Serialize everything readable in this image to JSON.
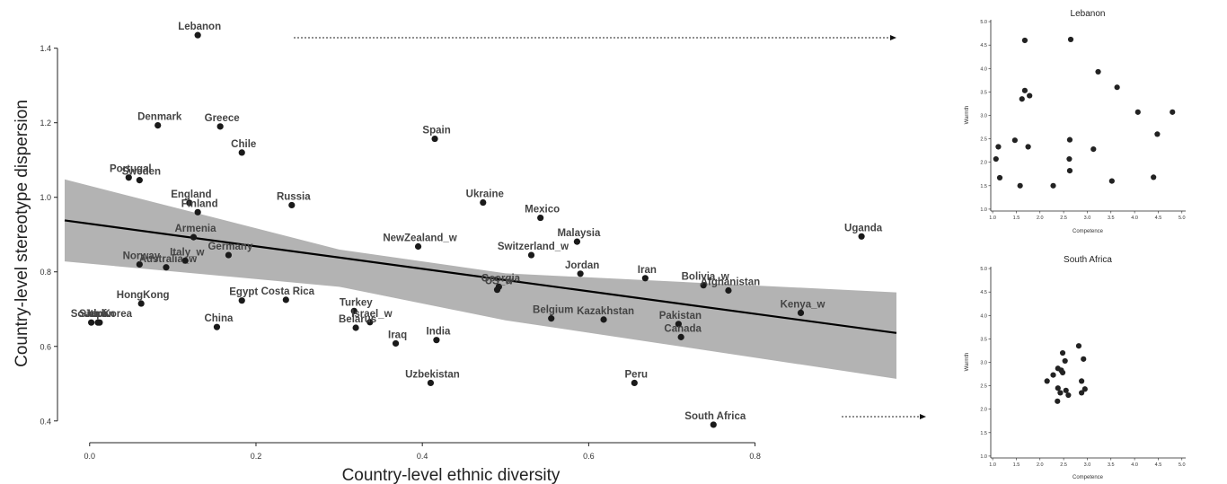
{
  "chart_data": [
    {
      "type": "scatter",
      "title": "",
      "xlabel": "Country-level ethnic diversity",
      "ylabel": "Country-level stereotype dispersion",
      "xlim": [
        -0.03,
        0.97
      ],
      "ylim": [
        0.385,
        1.445
      ],
      "xticks": [
        0.0,
        0.2,
        0.4,
        0.6,
        0.8
      ],
      "yticks": [
        0.4,
        0.6,
        0.8,
        1.0,
        1.2,
        1.4
      ],
      "xtick_labels": [
        "0.0",
        "0.2",
        "0.4",
        "0.6",
        "0.8"
      ],
      "ytick_labels": [
        "0.4",
        "0.6",
        "0.8",
        "1.0",
        "1.2",
        "1.4"
      ],
      "grid": false,
      "point_color": "#1a1a1a",
      "band_color": "#b3b3b3",
      "line_color": "#000000",
      "regression_line": {
        "x": [
          -0.03,
          0.97
        ],
        "y": [
          0.938,
          0.636
        ]
      },
      "confidence_band": {
        "x": [
          -0.03,
          0.3,
          0.5,
          0.97
        ],
        "upper": [
          1.048,
          0.86,
          0.796,
          0.745
        ],
        "lower": [
          0.828,
          0.76,
          0.67,
          0.513
        ]
      },
      "points": [
        {
          "label": "Lebanon",
          "x": 0.13,
          "y": 1.435
        },
        {
          "label": "Denmark",
          "x": 0.082,
          "y": 1.193
        },
        {
          "label": "Greece",
          "x": 0.157,
          "y": 1.19
        },
        {
          "label": "Chile",
          "x": 0.183,
          "y": 1.12
        },
        {
          "label": "Spain",
          "x": 0.415,
          "y": 1.157
        },
        {
          "label": "Portugal",
          "x": 0.047,
          "y": 1.053
        },
        {
          "label": "Sweden",
          "x": 0.06,
          "y": 1.046
        },
        {
          "label": "England",
          "x": 0.12,
          "y": 0.985
        },
        {
          "label": "Finland",
          "x": 0.13,
          "y": 0.96
        },
        {
          "label": "Russia",
          "x": 0.243,
          "y": 0.979
        },
        {
          "label": "Ukraine",
          "x": 0.473,
          "y": 0.986
        },
        {
          "label": "Mexico",
          "x": 0.542,
          "y": 0.945
        },
        {
          "label": "Uganda",
          "x": 0.928,
          "y": 0.895
        },
        {
          "label": "Armenia",
          "x": 0.125,
          "y": 0.893
        },
        {
          "label": "NewZealand_w",
          "x": 0.395,
          "y": 0.868
        },
        {
          "label": "Malaysia",
          "x": 0.586,
          "y": 0.881
        },
        {
          "label": "Switzerland_w",
          "x": 0.531,
          "y": 0.845
        },
        {
          "label": "Germany",
          "x": 0.167,
          "y": 0.845
        },
        {
          "label": "Italy_w",
          "x": 0.115,
          "y": 0.83
        },
        {
          "label": "Norway",
          "x": 0.06,
          "y": 0.82
        },
        {
          "label": "Australia_w",
          "x": 0.092,
          "y": 0.812
        },
        {
          "label": "Jordan",
          "x": 0.59,
          "y": 0.795
        },
        {
          "label": "Iran",
          "x": 0.668,
          "y": 0.783
        },
        {
          "label": "Bolivia_w",
          "x": 0.738,
          "y": 0.764
        },
        {
          "label": "Afghanistan",
          "x": 0.768,
          "y": 0.75
        },
        {
          "label": "Georgia",
          "x": 0.492,
          "y": 0.76
        },
        {
          "label": "US_w",
          "x": 0.49,
          "y": 0.752
        },
        {
          "label": "HongKong",
          "x": 0.062,
          "y": 0.715
        },
        {
          "label": "Egypt",
          "x": 0.183,
          "y": 0.723
        },
        {
          "label": "Costa Rica",
          "x": 0.236,
          "y": 0.725
        },
        {
          "label": "Turkey",
          "x": 0.318,
          "y": 0.695
        },
        {
          "label": "Israel_w",
          "x": 0.337,
          "y": 0.665
        },
        {
          "label": "Belarus",
          "x": 0.32,
          "y": 0.65
        },
        {
          "label": "Belgium",
          "x": 0.555,
          "y": 0.675
        },
        {
          "label": "Kazakhstan",
          "x": 0.618,
          "y": 0.672
        },
        {
          "label": "Pakistan",
          "x": 0.708,
          "y": 0.66
        },
        {
          "label": "Kenya_w",
          "x": 0.855,
          "y": 0.69
        },
        {
          "label": "Canada",
          "x": 0.711,
          "y": 0.625
        },
        {
          "label": "Saudi",
          "x": 0.002,
          "y": 0.664
        },
        {
          "label": "Japan",
          "x": 0.01,
          "y": 0.664
        },
        {
          "label": "South Korea",
          "x": 0.012,
          "y": 0.664
        },
        {
          "label": "China",
          "x": 0.153,
          "y": 0.652
        },
        {
          "label": "Iraq",
          "x": 0.368,
          "y": 0.608
        },
        {
          "label": "India",
          "x": 0.417,
          "y": 0.617
        },
        {
          "label": "Uzbekistan",
          "x": 0.41,
          "y": 0.502
        },
        {
          "label": "Peru",
          "x": 0.655,
          "y": 0.502
        },
        {
          "label": "South Africa",
          "x": 0.75,
          "y": 0.39
        }
      ]
    },
    {
      "type": "scatter",
      "title": "Lebanon",
      "xlabel": "Competence",
      "ylabel": "Warmth",
      "xlim": [
        0.96,
        5.08
      ],
      "ylim": [
        0.96,
        5.04
      ],
      "ticks": [
        "1.0",
        "1.5",
        "2.0",
        "2.5",
        "3.0",
        "3.5",
        "4.0",
        "4.5",
        "5.0"
      ],
      "points": [
        [
          1.68,
          4.6
        ],
        [
          2.65,
          4.62
        ],
        [
          3.23,
          3.93
        ],
        [
          1.68,
          3.53
        ],
        [
          1.78,
          3.42
        ],
        [
          1.62,
          3.35
        ],
        [
          3.63,
          3.6
        ],
        [
          4.07,
          3.07
        ],
        [
          4.8,
          3.07
        ],
        [
          4.48,
          2.6
        ],
        [
          1.12,
          2.33
        ],
        [
          1.47,
          2.47
        ],
        [
          1.75,
          2.33
        ],
        [
          2.63,
          2.48
        ],
        [
          3.13,
          2.28
        ],
        [
          1.07,
          2.07
        ],
        [
          2.62,
          2.07
        ],
        [
          2.63,
          1.82
        ],
        [
          1.15,
          1.67
        ],
        [
          4.4,
          1.68
        ],
        [
          1.58,
          1.5
        ],
        [
          2.28,
          1.5
        ],
        [
          3.52,
          1.6
        ]
      ]
    },
    {
      "type": "scatter",
      "title": "South Africa",
      "xlabel": "Competence",
      "ylabel": "Warmth",
      "xlim": [
        0.96,
        5.08
      ],
      "ylim": [
        0.96,
        5.04
      ],
      "ticks": [
        "1.0",
        "1.5",
        "2.0",
        "2.5",
        "3.0",
        "3.5",
        "4.0",
        "4.5",
        "5.0"
      ],
      "points": [
        [
          2.82,
          3.35
        ],
        [
          2.48,
          3.2
        ],
        [
          2.92,
          3.07
        ],
        [
          2.53,
          3.03
        ],
        [
          2.38,
          2.87
        ],
        [
          2.45,
          2.83
        ],
        [
          2.48,
          2.78
        ],
        [
          2.28,
          2.73
        ],
        [
          2.15,
          2.6
        ],
        [
          2.88,
          2.6
        ],
        [
          2.38,
          2.45
        ],
        [
          2.55,
          2.4
        ],
        [
          2.95,
          2.43
        ],
        [
          2.43,
          2.35
        ],
        [
          2.6,
          2.3
        ],
        [
          2.88,
          2.35
        ],
        [
          2.37,
          2.17
        ]
      ]
    }
  ]
}
